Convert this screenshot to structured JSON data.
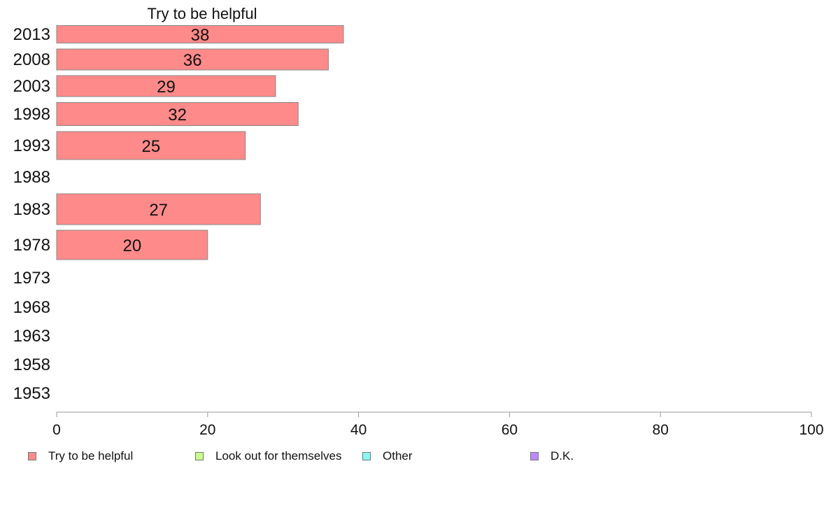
{
  "chart_data": {
    "type": "bar",
    "orientation": "horizontal",
    "title": "Try to be helpful",
    "categories": [
      "2013",
      "2008",
      "2003",
      "1998",
      "1993",
      "1988",
      "1983",
      "1978",
      "1973",
      "1968",
      "1963",
      "1958",
      "1953"
    ],
    "series": [
      {
        "name": "Try to be helpful",
        "color": "#ff8a8a",
        "values": [
          38,
          36,
          29,
          32,
          25,
          null,
          27,
          20,
          null,
          null,
          null,
          null,
          null
        ],
        "labels": [
          "38",
          "36",
          "29",
          "32",
          "25",
          "",
          "27",
          "20",
          "",
          "",
          "",
          "",
          ""
        ]
      }
    ],
    "xlim": [
      0,
      100
    ],
    "xticks": [
      "0",
      "20",
      "40",
      "60",
      "80",
      "100"
    ],
    "grid": false,
    "legend_position": "bottom",
    "legend": [
      {
        "label": "Try to be helpful",
        "color": "#ff8a8a"
      },
      {
        "label": "Look out for themselves",
        "color": "#c8ff8a"
      },
      {
        "label": "Other",
        "color": "#8af5f5"
      },
      {
        "label": "D.K.",
        "color": "#bb8aff"
      }
    ]
  }
}
